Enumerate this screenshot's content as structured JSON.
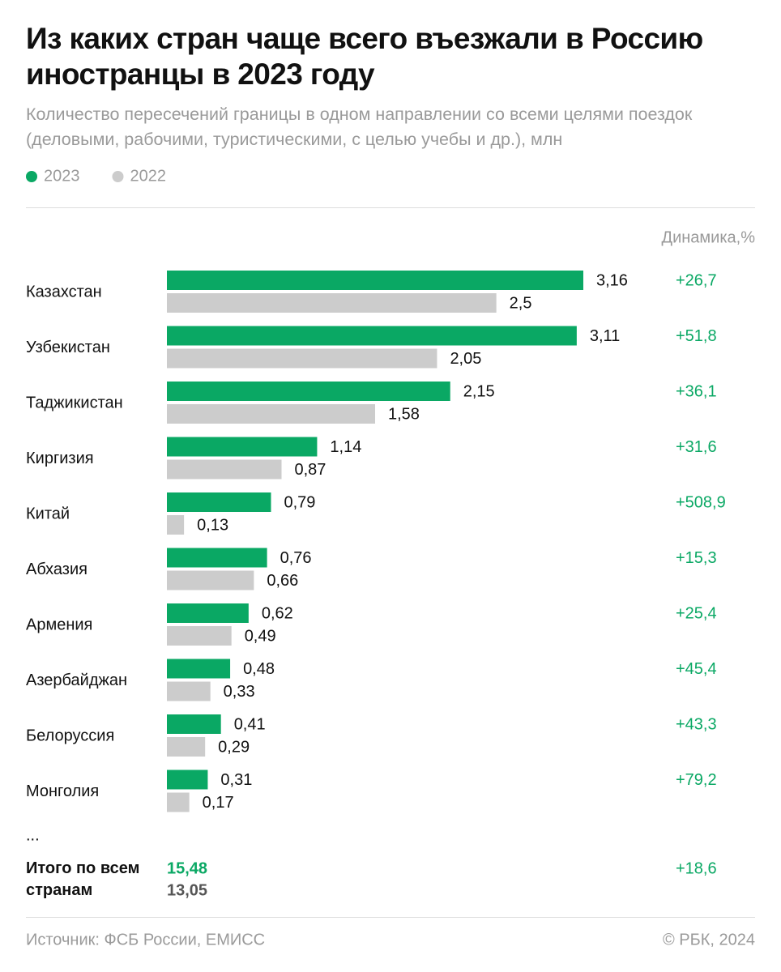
{
  "chart_data": {
    "type": "bar",
    "orientation": "horizontal",
    "title": "Из каких стран чаще всего въезжали в Россию иностранцы в 2023 году",
    "subtitle": "Количество пересечений границы в одном направлении со всеми целями поездок (деловыми, рабочими, туристическими, с целью учебы и др.), млн",
    "categories": [
      "Казахстан",
      "Узбекистан",
      "Таджикистан",
      "Киргизия",
      "Китай",
      "Абхазия",
      "Армения",
      "Азербайджан",
      "Белоруссия",
      "Монголия"
    ],
    "series": [
      {
        "name": "2023",
        "color": "#0aa864",
        "values": [
          3.16,
          3.11,
          2.15,
          1.14,
          0.79,
          0.76,
          0.62,
          0.48,
          0.41,
          0.31
        ],
        "value_labels": [
          "3,16",
          "3,11",
          "2,15",
          "1,14",
          "0,79",
          "0,76",
          "0,62",
          "0,48",
          "0,41",
          "0,31"
        ]
      },
      {
        "name": "2022",
        "color": "#cccccc",
        "values": [
          2.5,
          2.05,
          1.58,
          0.87,
          0.13,
          0.66,
          0.49,
          0.33,
          0.29,
          0.17
        ],
        "value_labels": [
          "2,5",
          "2,05",
          "1,58",
          "0,87",
          "0,13",
          "0,66",
          "0,49",
          "0,33",
          "0,29",
          "0,17"
        ]
      }
    ],
    "change_header": "Динамика,%",
    "change_labels": [
      "+26,7",
      "+51,8",
      "+36,1",
      "+31,6",
      "+508,9",
      "+15,3",
      "+25,4",
      "+45,4",
      "+43,3",
      "+79,2"
    ],
    "ellipsis": "...",
    "total": {
      "label": "Итого по всем странам",
      "values": [
        15.48,
        13.05
      ],
      "value_labels": [
        "15,48",
        "13,05"
      ],
      "change_label": "+18,6"
    },
    "source": "Источник: ФСБ России, ЕМИСС",
    "credit": "© РБК, 2024"
  }
}
